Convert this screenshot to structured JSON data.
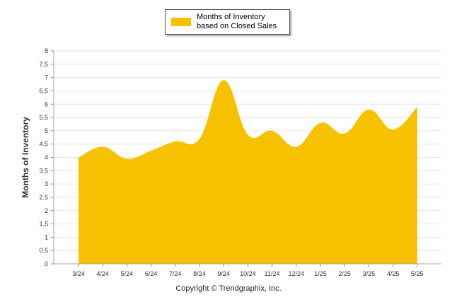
{
  "chart_data": {
    "type": "area",
    "categories": [
      "3/24",
      "4/24",
      "5/24",
      "6/24",
      "7/24",
      "8/24",
      "9/24",
      "10/24",
      "11/24",
      "12/24",
      "1/25",
      "2/25",
      "3/25",
      "4/25",
      "5/25"
    ],
    "series": [
      {
        "name": "Months of Inventory based on Closed Sales",
        "values": [
          4.0,
          4.4,
          3.95,
          4.25,
          4.6,
          4.7,
          6.9,
          4.85,
          5.0,
          4.4,
          5.3,
          4.9,
          5.8,
          5.05,
          5.9
        ]
      }
    ],
    "yticks": [
      "0",
      "0.5",
      "1",
      "1.5",
      "2",
      "2.5",
      "3",
      "3.5",
      "4",
      "4.5",
      "5",
      "5.5",
      "6",
      "6.5",
      "7",
      "7.5",
      "8"
    ],
    "ylim": [
      0,
      8
    ],
    "ylabel": "Months of Inventory",
    "xlabel": "",
    "grid": true,
    "legend_position": "top-center",
    "color": "#F6C200"
  },
  "legend": {
    "label": "Months of Inventory based on Closed Sales"
  },
  "footer": {
    "copyright": "Copyright © Trendgraphix, Inc."
  }
}
